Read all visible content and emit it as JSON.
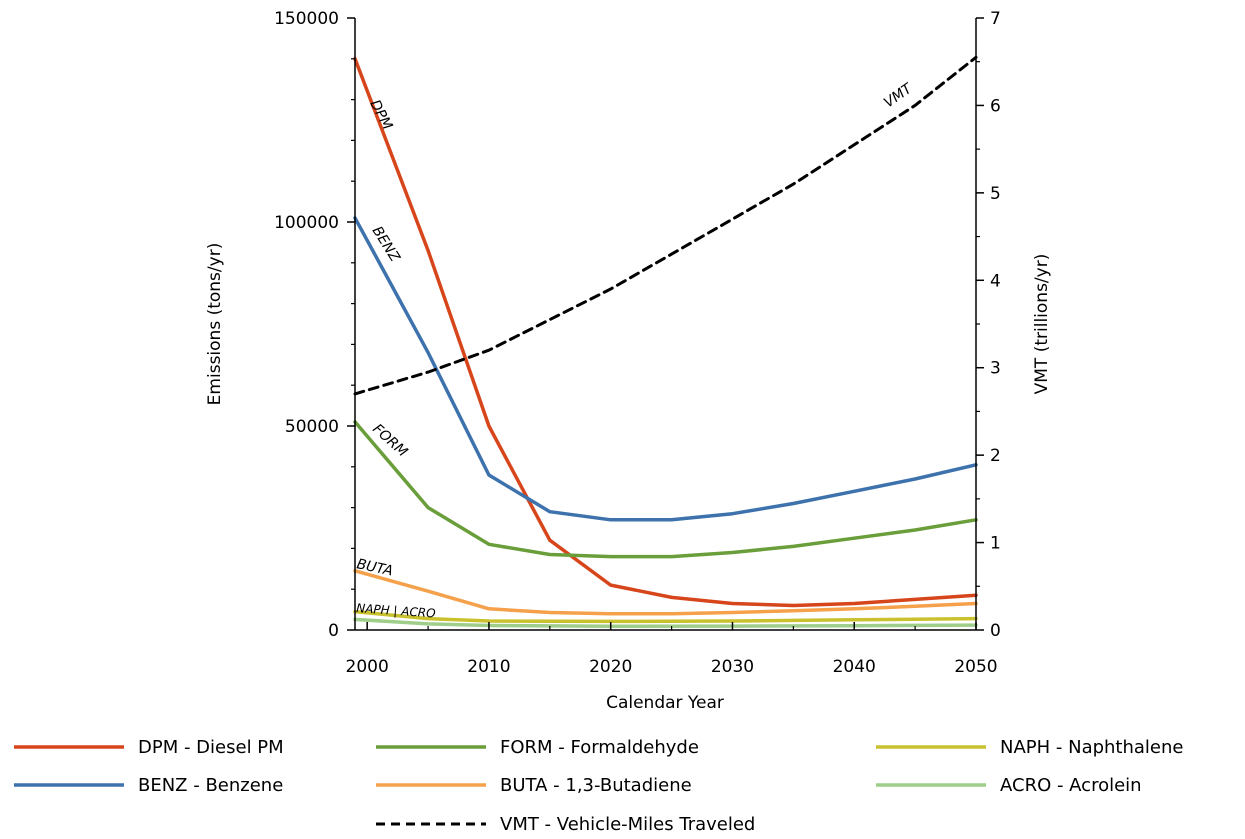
{
  "chart_data": {
    "type": "line",
    "xlabel": "Calendar Year",
    "ylabel": "Emissions (tons/yr)",
    "y2label": "VMT (trillions/yr)",
    "xlim": [
      1999,
      2050
    ],
    "ylim": [
      0,
      150000
    ],
    "y2lim": [
      0,
      7
    ],
    "x_ticks": [
      2000,
      2010,
      2020,
      2030,
      2040,
      2050
    ],
    "y_ticks": [
      0,
      50000,
      100000,
      150000
    ],
    "y2_ticks": [
      0,
      1,
      2,
      3,
      4,
      5,
      6,
      7
    ],
    "grid": false,
    "legend_position": "bottom",
    "series": [
      {
        "name": "DPM - Diesel PM",
        "short": "DPM",
        "color": "#d7451b",
        "axis": "left",
        "dash": false,
        "x": [
          1999,
          2005,
          2010,
          2015,
          2020,
          2025,
          2030,
          2035,
          2040,
          2045,
          2050
        ],
        "y": [
          140000,
          93000,
          50000,
          22000,
          11000,
          8000,
          6500,
          6000,
          6500,
          7500,
          8500
        ]
      },
      {
        "name": "BENZ - Benzene",
        "short": "BENZ",
        "color": "#3d72ad",
        "axis": "left",
        "dash": false,
        "x": [
          1999,
          2005,
          2010,
          2015,
          2020,
          2025,
          2030,
          2035,
          2040,
          2045,
          2050
        ],
        "y": [
          101000,
          68000,
          38000,
          29000,
          27000,
          27000,
          28500,
          31000,
          34000,
          37000,
          40500
        ]
      },
      {
        "name": "FORM - Formaldehyde",
        "short": "FORM",
        "color": "#6a9e3a",
        "axis": "left",
        "dash": false,
        "x": [
          1999,
          2005,
          2010,
          2015,
          2020,
          2025,
          2030,
          2035,
          2040,
          2045,
          2050
        ],
        "y": [
          51000,
          30000,
          21000,
          18500,
          18000,
          18000,
          19000,
          20500,
          22500,
          24500,
          27000
        ]
      },
      {
        "name": "BUTA - 1,3-Butadiene",
        "short": "BUTA",
        "color": "#f5a04b",
        "axis": "left",
        "dash": false,
        "x": [
          1999,
          2005,
          2010,
          2015,
          2020,
          2025,
          2030,
          2035,
          2040,
          2045,
          2050
        ],
        "y": [
          14500,
          9500,
          5200,
          4300,
          4000,
          4000,
          4300,
          4700,
          5200,
          5800,
          6500
        ]
      },
      {
        "name": "NAPH - Naphthalene",
        "short": "NAPH",
        "color": "#c9c22e",
        "axis": "left",
        "dash": false,
        "x": [
          1999,
          2005,
          2010,
          2020,
          2030,
          2040,
          2050
        ],
        "y": [
          4500,
          2800,
          2200,
          2100,
          2200,
          2500,
          2800
        ]
      },
      {
        "name": "ACRO - Acrolein",
        "short": "ACRO",
        "color": "#9fce8a",
        "axis": "left",
        "dash": false,
        "x": [
          1999,
          2005,
          2010,
          2020,
          2030,
          2040,
          2050
        ],
        "y": [
          2600,
          1500,
          1100,
          900,
          950,
          1050,
          1200
        ]
      },
      {
        "name": "VMT - Vehicle-Miles Traveled",
        "short": "VMT",
        "color": "#000000",
        "axis": "right",
        "dash": true,
        "x": [
          1999,
          2005,
          2010,
          2015,
          2020,
          2025,
          2030,
          2035,
          2040,
          2045,
          2050
        ],
        "y": [
          2.7,
          2.95,
          3.2,
          3.55,
          3.9,
          4.3,
          4.7,
          5.1,
          5.55,
          6.0,
          6.55
        ]
      }
    ],
    "inline_labels": [
      "DPM",
      "BENZ",
      "FORM",
      "BUTA",
      "NAPH | ACRO",
      "VMT"
    ]
  }
}
